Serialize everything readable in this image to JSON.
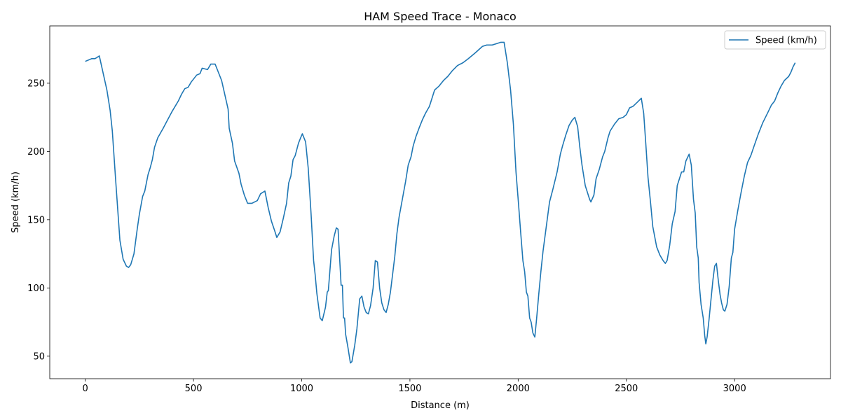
{
  "chart_data": {
    "type": "line",
    "title": "HAM Speed Trace - Monaco",
    "x_label": "Distance (m)",
    "y_label": "Speed (km/h)",
    "x": [
      0,
      30,
      45,
      65,
      100,
      115,
      125,
      140,
      160,
      175,
      190,
      200,
      210,
      225,
      240,
      250,
      265,
      275,
      290,
      300,
      310,
      320,
      335,
      360,
      380,
      400,
      430,
      445,
      460,
      475,
      490,
      515,
      530,
      540,
      565,
      580,
      600,
      610,
      630,
      650,
      660,
      665,
      680,
      690,
      710,
      720,
      735,
      750,
      770,
      795,
      810,
      830,
      845,
      860,
      875,
      885,
      900,
      915,
      930,
      940,
      950,
      960,
      970,
      985,
      995,
      1003,
      1018,
      1030,
      1043,
      1055,
      1062,
      1070,
      1085,
      1095,
      1110,
      1118,
      1123,
      1138,
      1150,
      1160,
      1168,
      1182,
      1188,
      1193,
      1198,
      1203,
      1213,
      1225,
      1232,
      1245,
      1255,
      1268,
      1278,
      1288,
      1298,
      1308,
      1318,
      1330,
      1340,
      1350,
      1360,
      1370,
      1380,
      1390,
      1400,
      1410,
      1420,
      1430,
      1440,
      1450,
      1465,
      1480,
      1492,
      1505,
      1515,
      1528,
      1542,
      1557,
      1572,
      1590,
      1600,
      1614,
      1635,
      1655,
      1675,
      1695,
      1720,
      1745,
      1770,
      1800,
      1835,
      1855,
      1880,
      1900,
      1920,
      1935,
      1950,
      1965,
      1978,
      1990,
      2000,
      2012,
      2022,
      2030,
      2038,
      2045,
      2053,
      2060,
      2068,
      2077,
      2085,
      2095,
      2105,
      2115,
      2130,
      2145,
      2160,
      2180,
      2195,
      2205,
      2220,
      2235,
      2250,
      2262,
      2275,
      2285,
      2295,
      2310,
      2320,
      2330,
      2336,
      2350,
      2360,
      2375,
      2390,
      2400,
      2415,
      2425,
      2445,
      2465,
      2485,
      2500,
      2515,
      2530,
      2550,
      2569,
      2580,
      2590,
      2600,
      2612,
      2622,
      2640,
      2655,
      2670,
      2680,
      2688,
      2700,
      2712,
      2725,
      2735,
      2745,
      2755,
      2765,
      2775,
      2790,
      2800,
      2810,
      2818,
      2825,
      2832,
      2836,
      2845,
      2855,
      2862,
      2867,
      2873,
      2882,
      2890,
      2900,
      2908,
      2916,
      2925,
      2933,
      2940,
      2948,
      2955,
      2965,
      2975,
      2985,
      2992,
      3000,
      3015,
      3030,
      3045,
      3060,
      3075,
      3090,
      3110,
      3130,
      3155,
      3170,
      3185,
      3200,
      3215,
      3230,
      3250,
      3260,
      3270,
      3280
    ],
    "series": [
      {
        "name": "Speed (km/h)",
        "color": "#1f77b4",
        "values": [
          266,
          268,
          268,
          270,
          245,
          230,
          215,
          180,
          135,
          121,
          116,
          115,
          117,
          125,
          143,
          154,
          167,
          171,
          183,
          188,
          194,
          203,
          210,
          217,
          223,
          229,
          237,
          242,
          246,
          247,
          251,
          256,
          257,
          261,
          260,
          264,
          264,
          260,
          252,
          238,
          231,
          217,
          206,
          193,
          184,
          176,
          168,
          162,
          162,
          164,
          169,
          171,
          159,
          149,
          142,
          137,
          141,
          151,
          162,
          177,
          182,
          194,
          197,
          206,
          210,
          213,
          207,
          188,
          155,
          120,
          110,
          96,
          78,
          76,
          86,
          97,
          98,
          128,
          138,
          144,
          143,
          102,
          102,
          78,
          78,
          66,
          57,
          45,
          46,
          58,
          70,
          92,
          94,
          86,
          82,
          81,
          87,
          100,
          120,
          119,
          100,
          89,
          84,
          82,
          88,
          97,
          110,
          123,
          140,
          152,
          165,
          178,
          190,
          196,
          204,
          211,
          217,
          223,
          228,
          233,
          238,
          245,
          248,
          252,
          255,
          259,
          263,
          265,
          268,
          272,
          277,
          278,
          278,
          279,
          280,
          280,
          265,
          245,
          220,
          185,
          165,
          140,
          120,
          112,
          97,
          94,
          78,
          75,
          67,
          64,
          77,
          95,
          112,
          127,
          145,
          163,
          172,
          185,
          198,
          204,
          212,
          219,
          223,
          225,
          218,
          203,
          190,
          175,
          170,
          165,
          163,
          168,
          180,
          187,
          196,
          200,
          210,
          215,
          220,
          224,
          225,
          227,
          232,
          233,
          236,
          239,
          228,
          205,
          181,
          162,
          145,
          130,
          124,
          120,
          118,
          120,
          131,
          147,
          156,
          175,
          180,
          185,
          185,
          193,
          198,
          190,
          165,
          155,
          130,
          122,
          104,
          88,
          78,
          65,
          59,
          64,
          77,
          90,
          106,
          116,
          118,
          105,
          95,
          89,
          84,
          83,
          88,
          101,
          122,
          126,
          143,
          157,
          170,
          182,
          192,
          197,
          204,
          213,
          221,
          229,
          234,
          237,
          243,
          248,
          252,
          255,
          258,
          262,
          265
        ]
      }
    ],
    "xlim": [
      -164,
      3443
    ],
    "ylim": [
      33.5,
      292
    ],
    "xticks": [
      0,
      500,
      1000,
      1500,
      2000,
      2500,
      3000
    ],
    "yticks": [
      50,
      100,
      150,
      200,
      250
    ],
    "grid": false,
    "legend": "upper right"
  }
}
